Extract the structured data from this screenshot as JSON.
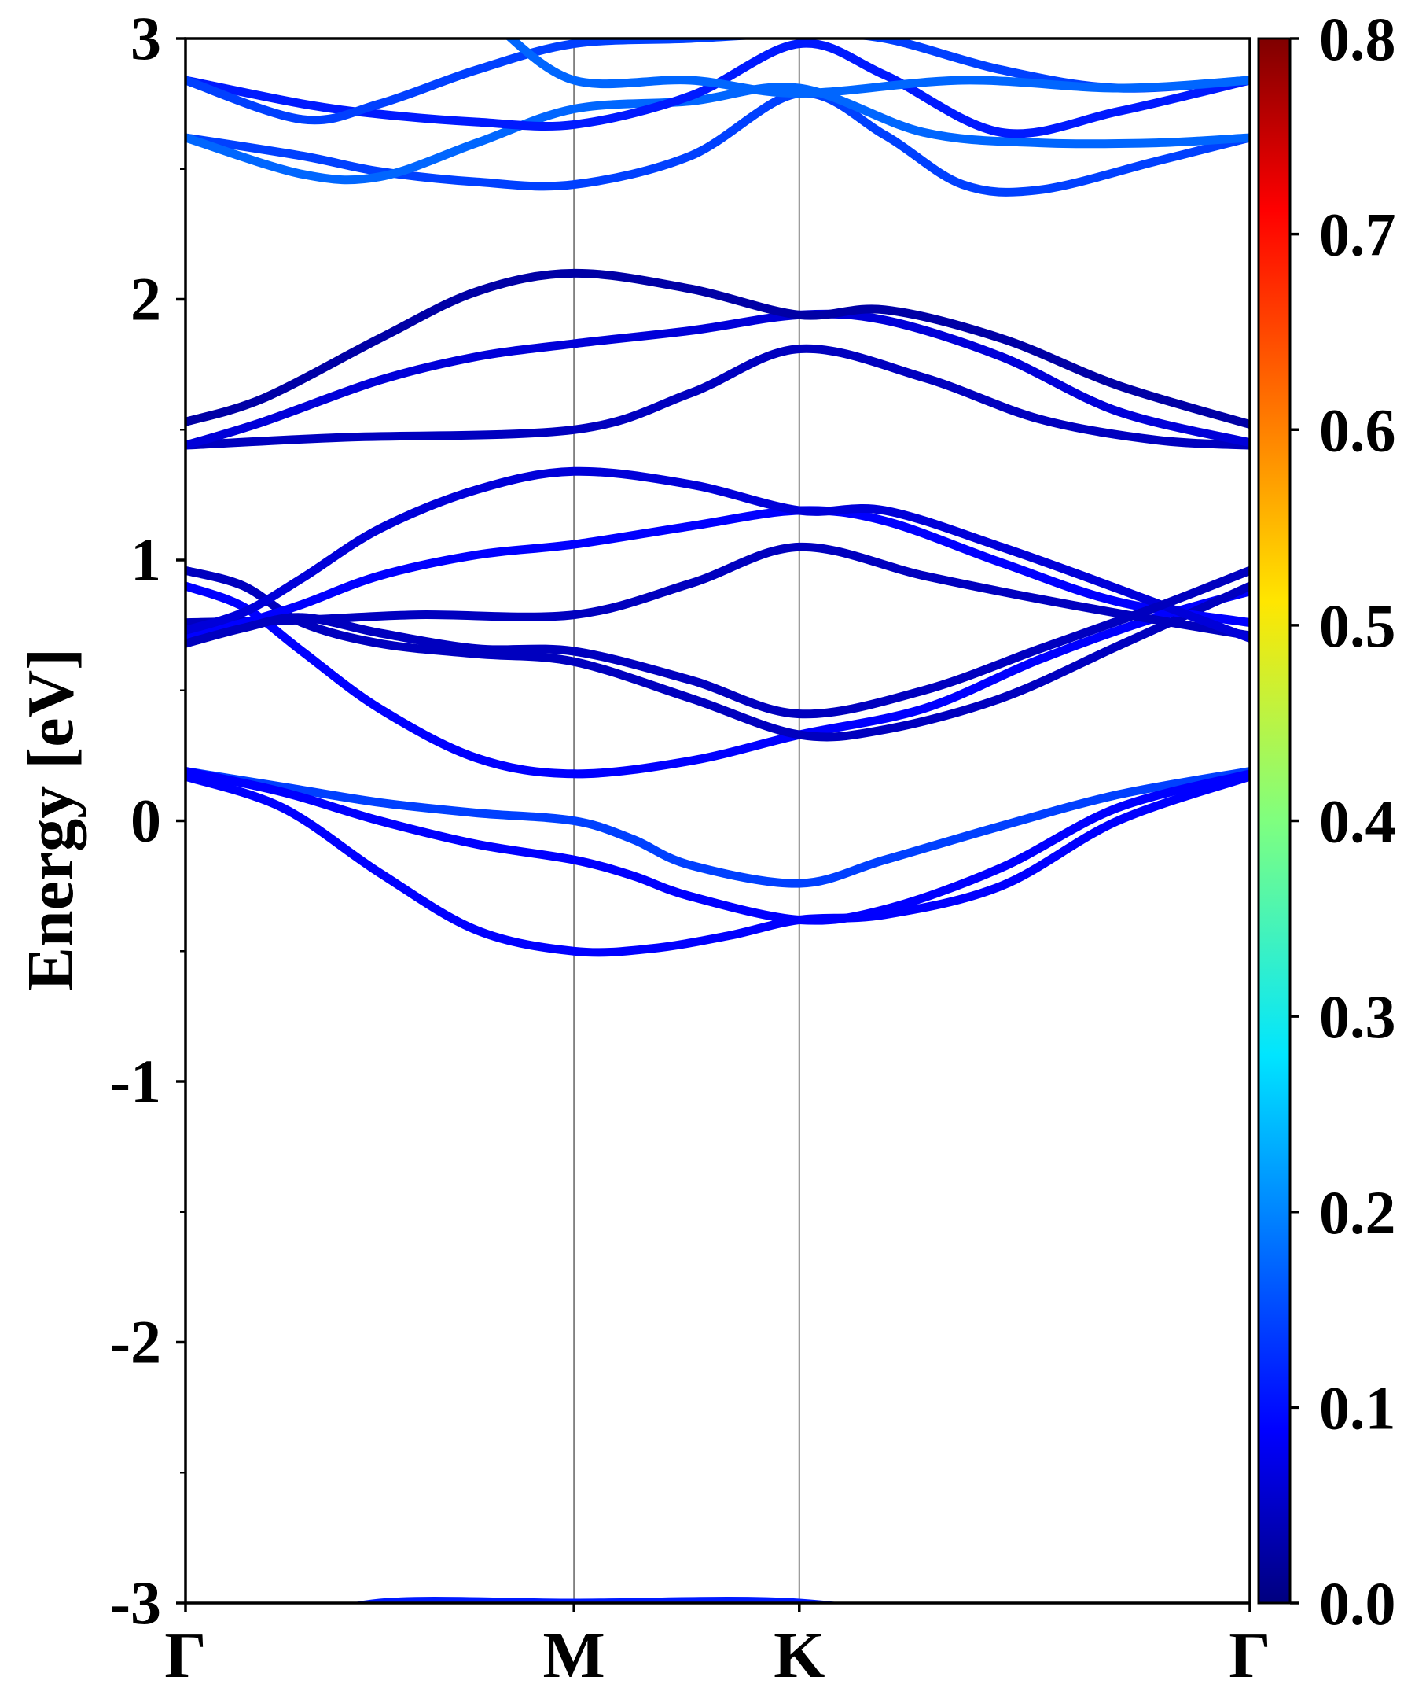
{
  "chart_data": {
    "type": "line",
    "title": "",
    "ylabel": "Energy [eV]",
    "xlabel": "",
    "ylim": [
      -3,
      3
    ],
    "y_ticks": [
      "-3",
      "-2",
      "-1",
      "0",
      "1",
      "2",
      "3"
    ],
    "x_ticks": [
      {
        "label": "Γ",
        "k": 0
      },
      {
        "label": "M",
        "k": 1
      },
      {
        "label": "K",
        "k": 1.58
      },
      {
        "label": "Γ",
        "k": 2.74
      }
    ],
    "colorbar": {
      "range": [
        0.0,
        0.8
      ],
      "tick_labels": [
        "0.0",
        "0.1",
        "0.2",
        "0.3",
        "0.4",
        "0.5",
        "0.6",
        "0.7",
        "0.8"
      ],
      "colormap": "jet"
    },
    "series": [
      {
        "values": [
          [
            0,
            -3.3
          ],
          [
            0.3,
            -3.1
          ],
          [
            0.5,
            -3.0
          ],
          [
            1,
            -3.0
          ],
          [
            1.58,
            -3.0
          ],
          [
            2.0,
            -3.1
          ],
          [
            2.74,
            -3.3
          ]
        ],
        "weight": 0.12
      },
      {
        "values": [
          [
            0,
            0.19
          ],
          [
            0.25,
            0.13
          ],
          [
            0.5,
            0.07
          ],
          [
            0.75,
            0.03
          ],
          [
            1,
            0.0
          ],
          [
            1.15,
            -0.07
          ],
          [
            1.3,
            -0.17
          ],
          [
            1.58,
            -0.24
          ],
          [
            1.8,
            -0.15
          ],
          [
            2.1,
            -0.02
          ],
          [
            2.4,
            0.1
          ],
          [
            2.74,
            0.19
          ]
        ],
        "weight": 0.15
      },
      {
        "values": [
          [
            0,
            0.19
          ],
          [
            0.25,
            0.11
          ],
          [
            0.5,
            0.0
          ],
          [
            0.75,
            -0.09
          ],
          [
            1,
            -0.15
          ],
          [
            1.15,
            -0.21
          ],
          [
            1.3,
            -0.29
          ],
          [
            1.58,
            -0.38
          ],
          [
            1.8,
            -0.34
          ],
          [
            2.1,
            -0.18
          ],
          [
            2.4,
            0.05
          ],
          [
            2.74,
            0.18
          ]
        ],
        "weight": 0.1
      },
      {
        "values": [
          [
            0,
            0.17
          ],
          [
            0.25,
            0.05
          ],
          [
            0.5,
            -0.2
          ],
          [
            0.75,
            -0.42
          ],
          [
            1,
            -0.5
          ],
          [
            1.2,
            -0.49
          ],
          [
            1.4,
            -0.44
          ],
          [
            1.58,
            -0.38
          ],
          [
            1.8,
            -0.36
          ],
          [
            2.1,
            -0.25
          ],
          [
            2.4,
            0.0
          ],
          [
            2.74,
            0.17
          ]
        ],
        "weight": 0.1
      },
      {
        "values": [
          [
            0,
            0.9
          ],
          [
            0.15,
            0.82
          ],
          [
            0.3,
            0.65
          ],
          [
            0.5,
            0.43
          ],
          [
            0.75,
            0.24
          ],
          [
            1,
            0.18
          ],
          [
            1.3,
            0.23
          ],
          [
            1.58,
            0.33
          ],
          [
            1.9,
            0.43
          ],
          [
            2.2,
            0.62
          ],
          [
            2.5,
            0.78
          ],
          [
            2.74,
            0.88
          ]
        ],
        "weight": 0.1
      },
      {
        "values": [
          [
            0,
            0.96
          ],
          [
            0.15,
            0.9
          ],
          [
            0.3,
            0.76
          ],
          [
            0.5,
            0.68
          ],
          [
            0.75,
            0.64
          ],
          [
            1,
            0.61
          ],
          [
            1.3,
            0.47
          ],
          [
            1.58,
            0.33
          ],
          [
            1.8,
            0.35
          ],
          [
            2.1,
            0.47
          ],
          [
            2.4,
            0.67
          ],
          [
            2.74,
            0.9
          ]
        ],
        "weight": 0.05
      },
      {
        "values": [
          [
            0,
            0.76
          ],
          [
            0.3,
            0.77
          ],
          [
            0.6,
            0.79
          ],
          [
            1,
            0.79
          ],
          [
            1.3,
            0.91
          ],
          [
            1.58,
            1.05
          ],
          [
            1.9,
            0.94
          ],
          [
            2.2,
            0.85
          ],
          [
            2.5,
            0.77
          ],
          [
            2.74,
            0.71
          ]
        ],
        "weight": 0.05
      },
      {
        "values": [
          [
            0,
            0.71
          ],
          [
            0.15,
            0.76
          ],
          [
            0.3,
            0.83
          ],
          [
            0.5,
            0.94
          ],
          [
            0.75,
            1.02
          ],
          [
            1,
            1.06
          ],
          [
            1.3,
            1.13
          ],
          [
            1.58,
            1.19
          ],
          [
            1.8,
            1.15
          ],
          [
            2.1,
            0.99
          ],
          [
            2.4,
            0.84
          ],
          [
            2.74,
            0.76
          ]
        ],
        "weight": 0.1
      },
      {
        "values": [
          [
            0,
            0.73
          ],
          [
            0.15,
            0.8
          ],
          [
            0.3,
            0.93
          ],
          [
            0.5,
            1.12
          ],
          [
            0.75,
            1.27
          ],
          [
            1,
            1.34
          ],
          [
            1.3,
            1.29
          ],
          [
            1.58,
            1.19
          ],
          [
            1.8,
            1.19
          ],
          [
            2.1,
            1.05
          ],
          [
            2.4,
            0.89
          ],
          [
            2.74,
            0.7
          ]
        ],
        "weight": 0.07
      },
      {
        "values": [
          [
            0,
            0.68
          ],
          [
            0.15,
            0.74
          ],
          [
            0.3,
            0.78
          ],
          [
            0.5,
            0.72
          ],
          [
            0.75,
            0.66
          ],
          [
            1,
            0.65
          ],
          [
            1.3,
            0.54
          ],
          [
            1.58,
            0.41
          ],
          [
            1.9,
            0.5
          ],
          [
            2.2,
            0.66
          ],
          [
            2.5,
            0.82
          ],
          [
            2.74,
            0.96
          ]
        ],
        "weight": 0.05
      },
      {
        "values": [
          [
            0,
            1.44
          ],
          [
            0.4,
            1.47
          ],
          [
            1,
            1.5
          ],
          [
            1.3,
            1.64
          ],
          [
            1.58,
            1.81
          ],
          [
            1.9,
            1.7
          ],
          [
            2.2,
            1.54
          ],
          [
            2.5,
            1.46
          ],
          [
            2.74,
            1.44
          ]
        ],
        "weight": 0.05
      },
      {
        "values": [
          [
            0,
            1.44
          ],
          [
            0.2,
            1.53
          ],
          [
            0.5,
            1.69
          ],
          [
            0.75,
            1.78
          ],
          [
            1,
            1.83
          ],
          [
            1.3,
            1.88
          ],
          [
            1.58,
            1.94
          ],
          [
            1.8,
            1.92
          ],
          [
            2.1,
            1.78
          ],
          [
            2.4,
            1.57
          ],
          [
            2.74,
            1.45
          ]
        ],
        "weight": 0.07
      },
      {
        "values": [
          [
            0,
            1.53
          ],
          [
            0.2,
            1.62
          ],
          [
            0.5,
            1.85
          ],
          [
            0.75,
            2.03
          ],
          [
            1,
            2.1
          ],
          [
            1.3,
            2.04
          ],
          [
            1.58,
            1.94
          ],
          [
            1.8,
            1.96
          ],
          [
            2.1,
            1.85
          ],
          [
            2.4,
            1.67
          ],
          [
            2.74,
            1.52
          ]
        ],
        "weight": 0.03
      },
      {
        "values": [
          [
            0,
            2.62
          ],
          [
            0.3,
            2.55
          ],
          [
            0.5,
            2.49
          ],
          [
            0.75,
            2.45
          ],
          [
            1,
            2.44
          ],
          [
            1.3,
            2.55
          ],
          [
            1.58,
            2.79
          ],
          [
            1.8,
            2.63
          ],
          [
            2.0,
            2.44
          ],
          [
            2.2,
            2.42
          ],
          [
            2.5,
            2.53
          ],
          [
            2.74,
            2.62
          ]
        ],
        "weight": 0.15
      },
      {
        "values": [
          [
            0,
            2.62
          ],
          [
            0.3,
            2.48
          ],
          [
            0.5,
            2.47
          ],
          [
            0.75,
            2.6
          ],
          [
            1,
            2.73
          ],
          [
            1.3,
            2.76
          ],
          [
            1.58,
            2.81
          ],
          [
            1.9,
            2.64
          ],
          [
            2.2,
            2.6
          ],
          [
            2.5,
            2.6
          ],
          [
            2.74,
            2.62
          ]
        ],
        "weight": 0.18
      },
      {
        "values": [
          [
            0,
            2.84
          ],
          [
            0.3,
            2.75
          ],
          [
            0.5,
            2.71
          ],
          [
            0.75,
            2.68
          ],
          [
            1,
            2.67
          ],
          [
            1.3,
            2.78
          ],
          [
            1.58,
            2.98
          ],
          [
            1.8,
            2.86
          ],
          [
            2.1,
            2.64
          ],
          [
            2.4,
            2.72
          ],
          [
            2.74,
            2.84
          ]
        ],
        "weight": 0.12
      },
      {
        "values": [
          [
            0,
            2.84
          ],
          [
            0.3,
            2.69
          ],
          [
            0.5,
            2.75
          ],
          [
            0.75,
            2.88
          ],
          [
            1,
            2.98
          ],
          [
            1.3,
            3.0
          ],
          [
            1.58,
            3.02
          ],
          [
            1.8,
            3.0
          ],
          [
            2.1,
            2.88
          ],
          [
            2.4,
            2.81
          ],
          [
            2.74,
            2.84
          ]
        ],
        "weight": 0.15
      },
      {
        "values": [
          [
            0.8,
            3.05
          ],
          [
            1,
            2.84
          ],
          [
            1.3,
            2.84
          ],
          [
            1.58,
            2.79
          ],
          [
            2.0,
            2.84
          ],
          [
            2.4,
            2.81
          ],
          [
            2.74,
            2.84
          ]
        ],
        "weight": 0.18
      }
    ]
  }
}
